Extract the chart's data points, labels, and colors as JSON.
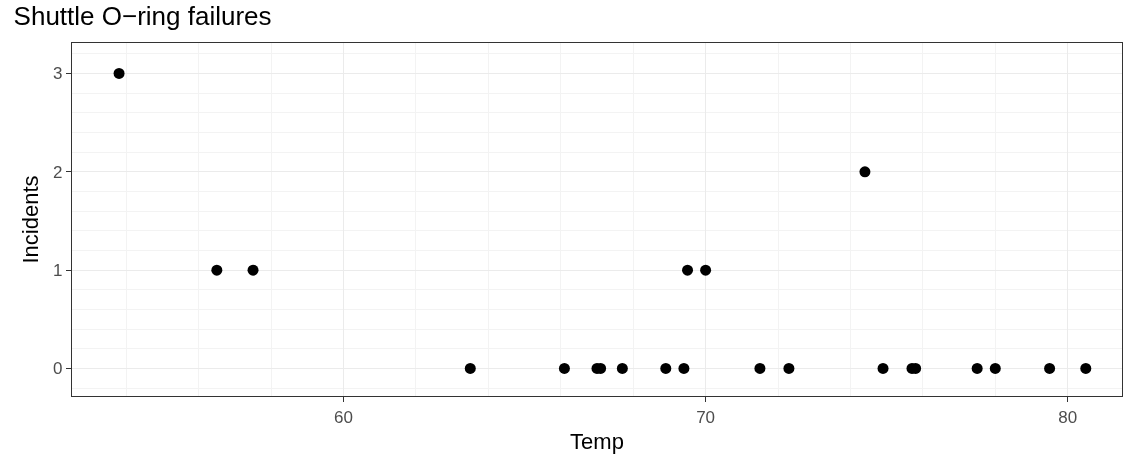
{
  "chart_data": {
    "type": "scatter",
    "title": "Shuttle O−ring failures",
    "xlabel": "Temp",
    "ylabel": "Incidents",
    "x": [
      53.8,
      56.5,
      57.5,
      63.5,
      66.1,
      67.0,
      67.1,
      67.7,
      68.9,
      69.4,
      69.5,
      70.0,
      71.5,
      72.3,
      74.4,
      74.9,
      75.7,
      75.8,
      77.5,
      78.0,
      79.5,
      80.5
    ],
    "values": [
      3,
      1,
      1,
      0,
      0,
      0,
      0,
      0,
      0,
      0,
      1,
      1,
      0,
      0,
      2,
      0,
      0,
      0,
      0,
      0,
      0,
      0
    ],
    "color": "#000000",
    "marker": "circle",
    "xlim": [
      52.5,
      81.5
    ],
    "xticks": [
      60,
      70,
      80
    ],
    "ylim": [
      -0.28,
      3.31
    ],
    "yticks": [
      0,
      1,
      2,
      3
    ],
    "grid": true,
    "legend": false
  }
}
